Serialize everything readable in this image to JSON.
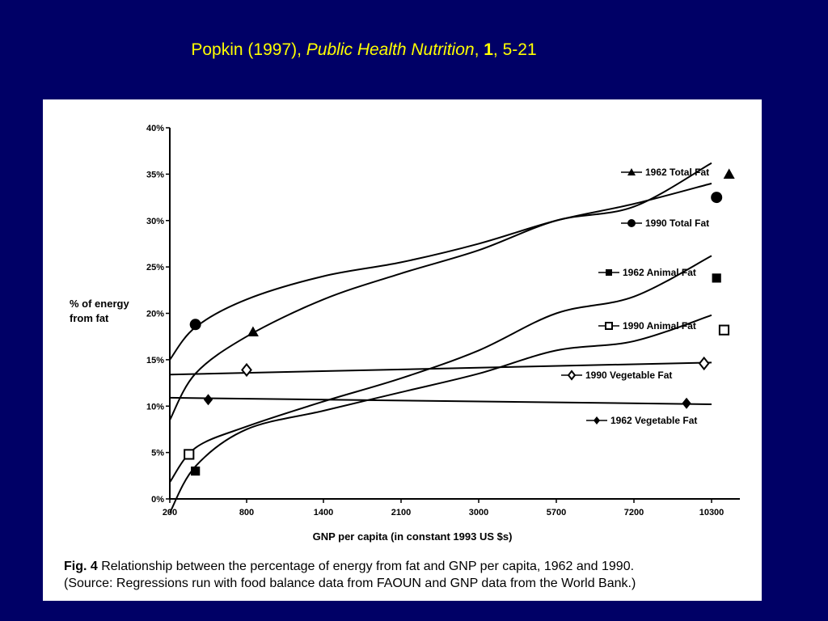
{
  "slide": {
    "title_author": "Popkin (1997), ",
    "title_journal": "Public Health Nutrition",
    "title_sep": ", ",
    "title_volume": "1",
    "title_pages": ", 5-21"
  },
  "colors": {
    "background": "#000066",
    "title": "#ffff00",
    "panel": "#ffffff",
    "ink": "#000000"
  },
  "caption": {
    "fig_label": "Fig. 4",
    "line1": " Relationship between the percentage of energy from fat and GNP per capita, 1962 and 1990.",
    "line2": "(Source: Regressions run with food balance data from FAOUN and GNP data from the World Bank.)"
  },
  "chart_data": {
    "type": "line",
    "title": "",
    "xlabel": "GNP per capita (in constant 1993 US $s)",
    "ylabel": "% of energy from fat",
    "x_ticks": [
      "200",
      "800",
      "1400",
      "2100",
      "3000",
      "5700",
      "7200",
      "10300"
    ],
    "y_ticks": [
      "0%",
      "5%",
      "10%",
      "15%",
      "20%",
      "25%",
      "30%",
      "35%",
      "40%"
    ],
    "ylim": [
      0,
      40
    ],
    "grid": false,
    "legend_position": "right",
    "series": [
      {
        "name": "1962 Total Fat",
        "marker": "triangle",
        "x": [
          200,
          400,
          800,
          1400,
          2100,
          3000,
          5700,
          7200,
          10300
        ],
        "y": [
          8.5,
          13.5,
          17.5,
          21.5,
          24.3,
          26.8,
          30.0,
          31.5,
          36.2
        ],
        "marker_points": [
          [
            850,
            18.0
          ],
          [
            11000,
            35.0
          ]
        ]
      },
      {
        "name": "1990 Total Fat",
        "marker": "circle",
        "x": [
          200,
          400,
          800,
          1400,
          2100,
          3000,
          5700,
          7200,
          10300
        ],
        "y": [
          15.0,
          18.5,
          21.5,
          24.0,
          25.5,
          27.5,
          30.0,
          31.8,
          34.0
        ],
        "marker_points": [
          [
            400,
            18.8
          ],
          [
            10500,
            32.5
          ]
        ]
      },
      {
        "name": "1962 Animal Fat",
        "marker": "filled-square",
        "x": [
          200,
          400,
          800,
          1400,
          2100,
          3000,
          5700,
          7200,
          10300
        ],
        "y": [
          -1.5,
          3.5,
          7.5,
          9.5,
          11.5,
          13.5,
          16.0,
          17.0,
          19.8
        ],
        "marker_points": [
          [
            400,
            3.0
          ],
          [
            10500,
            23.8
          ]
        ]
      },
      {
        "name": "1990 Animal  Fat",
        "marker": "open-square",
        "x": [
          200,
          400,
          800,
          1400,
          2100,
          3000,
          5700,
          7200,
          10300
        ],
        "y": [
          1.8,
          5.5,
          7.8,
          10.5,
          13.0,
          16.0,
          20.0,
          21.8,
          26.2
        ],
        "marker_points": [
          [
            350,
            4.8
          ],
          [
            10800,
            18.2
          ]
        ]
      },
      {
        "name": "1990 Vegetable  Fat",
        "marker": "open-diamond",
        "x": [
          200,
          10300
        ],
        "y": [
          13.4,
          14.7
        ],
        "marker_points": [
          [
            800,
            13.9
          ],
          [
            10000,
            14.6
          ]
        ]
      },
      {
        "name": "1962 Vegetable  Fat",
        "marker": "filled-diamond",
        "x": [
          200,
          10300
        ],
        "y": [
          10.9,
          10.2
        ],
        "marker_points": [
          [
            500,
            10.7
          ],
          [
            9300,
            10.3
          ]
        ]
      }
    ]
  }
}
